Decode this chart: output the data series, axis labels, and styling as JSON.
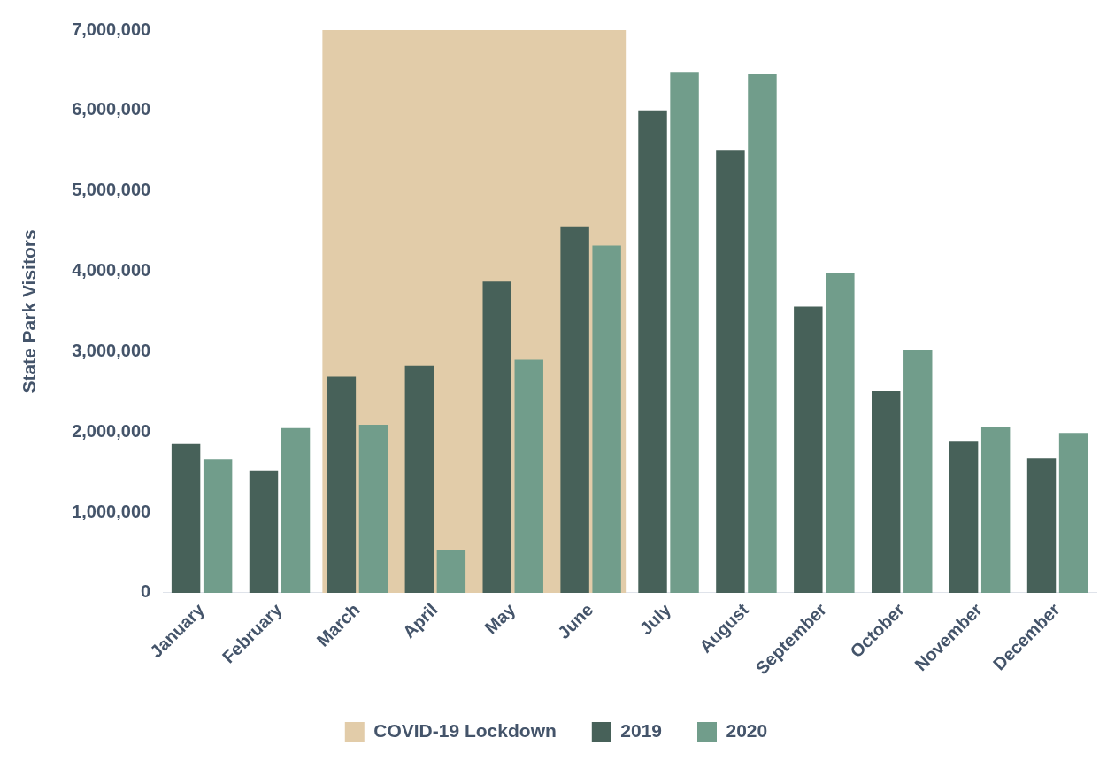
{
  "chart_data": {
    "type": "bar",
    "ylabel": "State Park Visitors",
    "categories": [
      "January",
      "February",
      "March",
      "April",
      "May",
      "June",
      "July",
      "August",
      "September",
      "October",
      "November",
      "December"
    ],
    "series": [
      {
        "name": "2019",
        "color": "#476159",
        "values": [
          1850000,
          1520000,
          2690000,
          2820000,
          3870000,
          4560000,
          6000000,
          5500000,
          3560000,
          2510000,
          1890000,
          1670000
        ]
      },
      {
        "name": "2020",
        "color": "#719d8b",
        "values": [
          1660000,
          2050000,
          2090000,
          530000,
          2900000,
          4320000,
          6480000,
          6450000,
          3980000,
          3020000,
          2070000,
          1990000
        ]
      }
    ],
    "bands": [
      {
        "axis": "x",
        "from": "March",
        "to": "June",
        "label": "COVID-19 Lockdown",
        "color": "#e2cca9"
      }
    ],
    "ylim": [
      0,
      7000000
    ],
    "yticks": [
      0,
      {
        "value": 1000000,
        "label": "1,000,000"
      },
      {
        "value": 2000000,
        "label": "2,000,000"
      },
      {
        "value": 3000000,
        "label": "3,000,000"
      },
      {
        "value": 4000000,
        "label": "4,000,000"
      },
      {
        "value": 5000000,
        "label": "5,000,000"
      },
      {
        "value": 6000000,
        "label": "6,000,000"
      },
      {
        "value": 7000000,
        "label": "7,000,000"
      }
    ],
    "grid": false,
    "legend": "bottom"
  }
}
